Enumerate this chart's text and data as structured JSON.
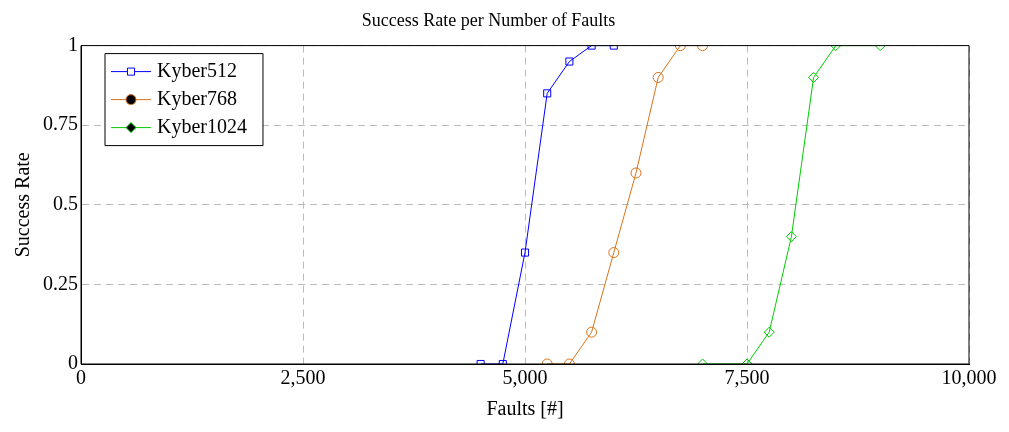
{
  "chart_data": {
    "type": "line",
    "title": "Success Rate per Number of Faults",
    "xlabel": "Faults [#]",
    "ylabel": "Success Rate",
    "xlim": [
      0,
      10000
    ],
    "xticks": [
      0,
      {
        "value": 2500,
        "label": "2,500"
      },
      {
        "value": 5000,
        "label": "5,000"
      },
      {
        "value": 7500,
        "label": "7,500"
      },
      {
        "value": 10000,
        "label": "10,000"
      }
    ],
    "ylim": [
      0,
      1
    ],
    "yticks": [
      0,
      0.25,
      0.5,
      0.75,
      1
    ],
    "grid": true,
    "legend": "top left",
    "line_style": "solid",
    "series": [
      {
        "name": "Kyber512",
        "color": "#0000ff",
        "marker": "square",
        "x": [
          4500,
          4750,
          5000,
          5250,
          5500,
          5750,
          6000
        ],
        "values": [
          0,
          0,
          0.35,
          0.85,
          0.95,
          1,
          1
        ]
      },
      {
        "name": "Kyber768",
        "color": "#d9741a",
        "marker": "circle",
        "x": [
          5250,
          5500,
          5750,
          6000,
          6250,
          6500,
          6750,
          7000
        ],
        "values": [
          0,
          0,
          0.1,
          0.35,
          0.6,
          0.9,
          1,
          1
        ]
      },
      {
        "name": "Kyber1024",
        "color": "#00cc00",
        "marker": "diamond",
        "x": [
          7000,
          7500,
          7750,
          8000,
          8250,
          8500,
          9000
        ],
        "values": [
          0,
          0,
          0.1,
          0.4,
          0.9,
          1,
          1
        ]
      }
    ]
  }
}
